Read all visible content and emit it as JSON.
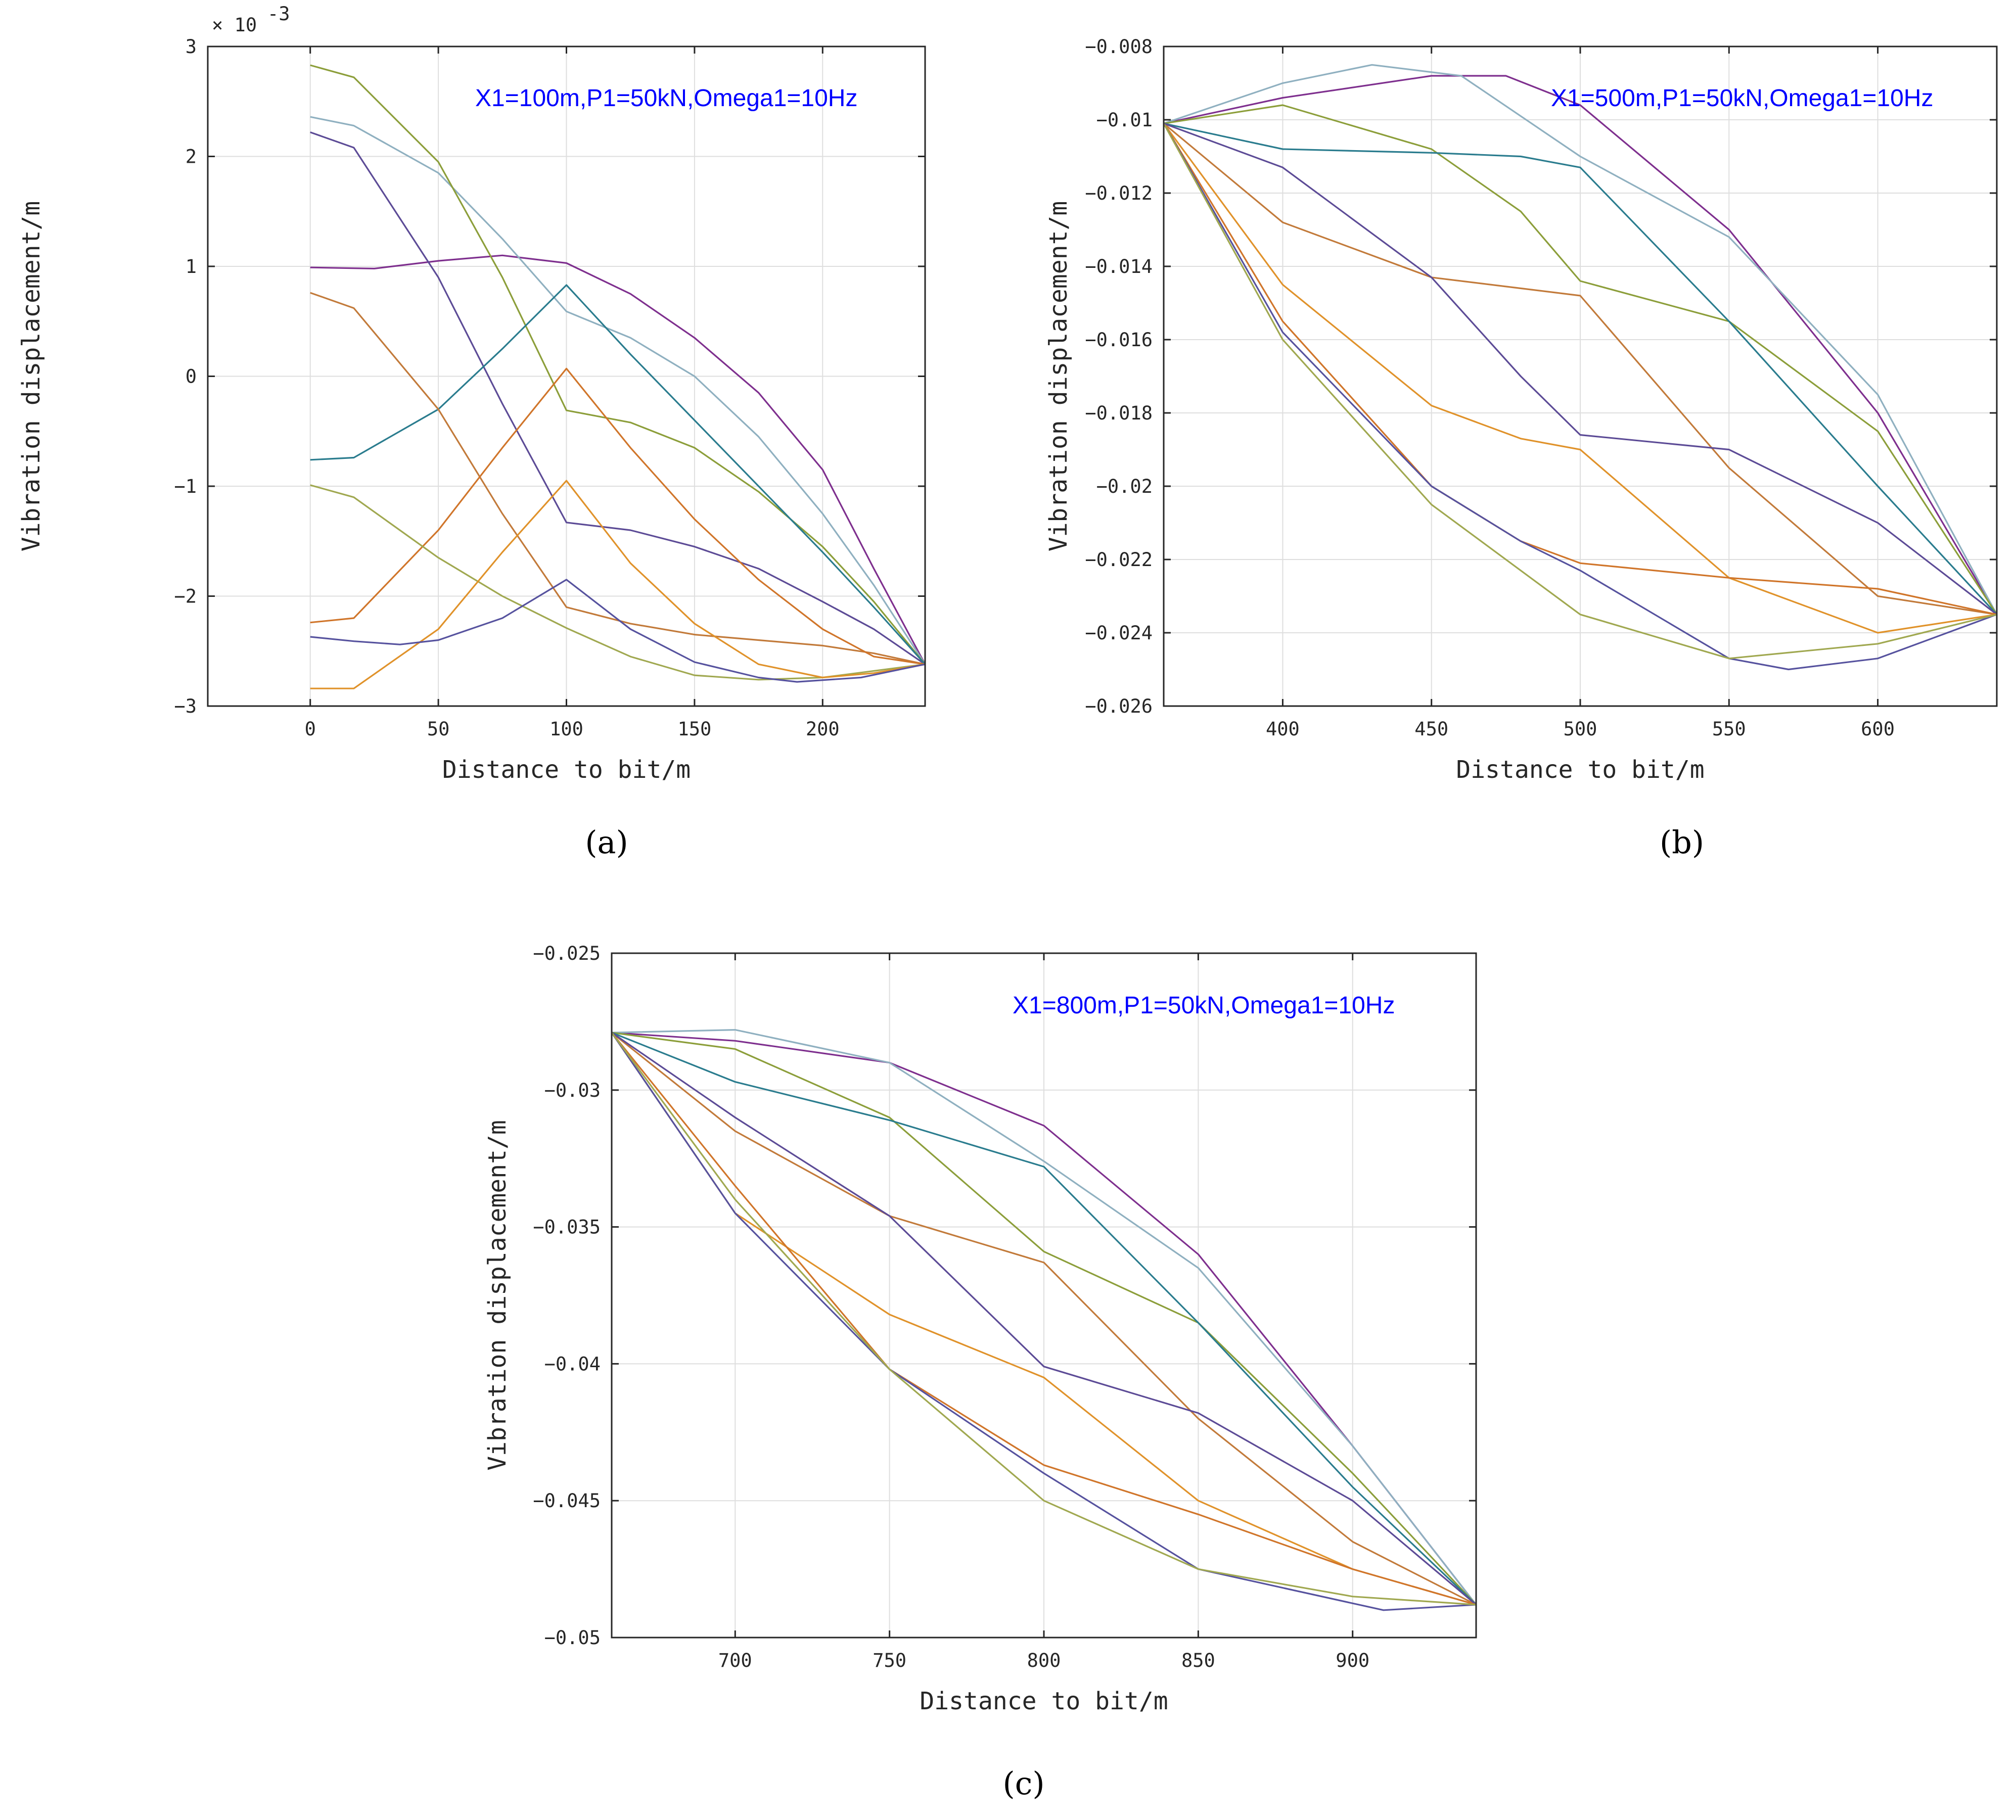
{
  "chart_data": [
    {
      "type": "line",
      "panel_label": "(a)",
      "annotation": "X1=100m,P1=50kN,Omega1=10Hz",
      "xlabel": "Distance to bit/m",
      "ylabel": "Vibration displacement/m",
      "y_multiplier": "× 10",
      "y_multiplier_exp": "-3",
      "xlim": [
        -40,
        240
      ],
      "ylim": [
        -3,
        3
      ],
      "xticks": [
        0,
        50,
        100,
        150,
        200
      ],
      "xtick_labels": [
        "0",
        "50",
        "100",
        "150",
        "200"
      ],
      "yticks": [
        -3,
        -2,
        -1,
        0,
        1,
        2,
        3
      ],
      "ytick_labels": [
        "−3",
        "−2",
        "−1",
        "0",
        "1",
        "2",
        "3"
      ],
      "grid": true,
      "series": [
        {
          "color": "#7e2f8e",
          "x": [
            0,
            25,
            50,
            75,
            100,
            125,
            150,
            175,
            200,
            220,
            240
          ],
          "y": [
            0.99,
            0.98,
            1.05,
            1.1,
            1.03,
            0.75,
            0.35,
            -0.15,
            -0.85,
            -1.75,
            -2.62
          ]
        },
        {
          "color": "#8fb0c0",
          "x": [
            0,
            17,
            50,
            75,
            100,
            125,
            150,
            175,
            200,
            220,
            240
          ],
          "y": [
            2.36,
            2.28,
            1.85,
            1.25,
            0.59,
            0.35,
            0.0,
            -0.55,
            -1.25,
            -1.9,
            -2.62
          ]
        },
        {
          "color": "#8c9e3a",
          "x": [
            0,
            17,
            50,
            75,
            100,
            125,
            150,
            175,
            200,
            220,
            240
          ],
          "y": [
            2.83,
            2.72,
            1.95,
            0.9,
            -0.31,
            -0.42,
            -0.65,
            -1.05,
            -1.55,
            -2.05,
            -2.62
          ]
        },
        {
          "color": "#5c4b96",
          "x": [
            0,
            17,
            50,
            75,
            100,
            125,
            150,
            175,
            200,
            220,
            240
          ],
          "y": [
            2.22,
            2.08,
            0.9,
            -0.25,
            -1.33,
            -1.4,
            -1.55,
            -1.75,
            -2.05,
            -2.3,
            -2.62
          ]
        },
        {
          "color": "#2a7c8e",
          "x": [
            0,
            17,
            50,
            75,
            100,
            125,
            150,
            175,
            200,
            220,
            240
          ],
          "y": [
            -0.76,
            -0.74,
            -0.3,
            0.25,
            0.83,
            0.2,
            -0.4,
            -1.0,
            -1.6,
            -2.1,
            -2.62
          ]
        },
        {
          "color": "#c27a3a",
          "x": [
            0,
            17,
            50,
            75,
            100,
            125,
            150,
            175,
            200,
            220,
            240
          ],
          "y": [
            0.76,
            0.62,
            -0.3,
            -1.25,
            -2.1,
            -2.25,
            -2.35,
            -2.4,
            -2.45,
            -2.52,
            -2.62
          ]
        },
        {
          "color": "#d0752a",
          "x": [
            0,
            17,
            50,
            75,
            100,
            125,
            150,
            175,
            200,
            220,
            240
          ],
          "y": [
            -2.24,
            -2.2,
            -1.4,
            -0.65,
            0.07,
            -0.65,
            -1.3,
            -1.85,
            -2.3,
            -2.55,
            -2.62
          ]
        },
        {
          "color": "#a0a850",
          "x": [
            0,
            17,
            50,
            75,
            100,
            125,
            150,
            175,
            200,
            220,
            240
          ],
          "y": [
            -0.99,
            -1.1,
            -1.65,
            -2.0,
            -2.29,
            -2.55,
            -2.72,
            -2.76,
            -2.74,
            -2.68,
            -2.62
          ]
        },
        {
          "color": "#e0922a",
          "x": [
            0,
            17,
            50,
            75,
            100,
            125,
            150,
            175,
            200,
            220,
            240
          ],
          "y": [
            -2.84,
            -2.84,
            -2.3,
            -1.6,
            -0.95,
            -1.7,
            -2.25,
            -2.62,
            -2.74,
            -2.7,
            -2.62
          ]
        },
        {
          "color": "#56529e",
          "x": [
            0,
            17,
            35,
            50,
            75,
            100,
            125,
            150,
            175,
            190,
            215,
            240
          ],
          "y": [
            -2.37,
            -2.41,
            -2.44,
            -2.4,
            -2.2,
            -1.85,
            -2.3,
            -2.6,
            -2.74,
            -2.78,
            -2.74,
            -2.62
          ]
        }
      ]
    },
    {
      "type": "line",
      "panel_label": "(b)",
      "annotation": "X1=500m,P1=50kN,Omega1=10Hz",
      "xlabel": "Distance to bit/m",
      "ylabel": "Vibration displacement/m",
      "xlim": [
        360,
        640
      ],
      "ylim": [
        -0.026,
        -0.008
      ],
      "xticks": [
        400,
        450,
        500,
        550,
        600
      ],
      "xtick_labels": [
        "400",
        "450",
        "500",
        "550",
        "600"
      ],
      "yticks": [
        -0.026,
        -0.024,
        -0.022,
        -0.02,
        -0.018,
        -0.016,
        -0.014,
        -0.012,
        -0.01,
        -0.008
      ],
      "ytick_labels": [
        "−0.026",
        "−0.024",
        "−0.022",
        "−0.02",
        "−0.018",
        "−0.016",
        "−0.014",
        "−0.012",
        "−0.01",
        "−0.008"
      ],
      "grid": true,
      "series": [
        {
          "color": "#7e2f8e",
          "x": [
            360,
            400,
            450,
            475,
            500,
            550,
            600,
            640
          ],
          "y": [
            -0.0101,
            -0.0094,
            -0.0088,
            -0.0088,
            -0.0096,
            -0.013,
            -0.018,
            -0.0235
          ]
        },
        {
          "color": "#8fb0c0",
          "x": [
            360,
            400,
            430,
            460,
            500,
            550,
            600,
            640
          ],
          "y": [
            -0.0101,
            -0.009,
            -0.0085,
            -0.0088,
            -0.011,
            -0.0132,
            -0.0175,
            -0.0235
          ]
        },
        {
          "color": "#8c9e3a",
          "x": [
            360,
            400,
            450,
            480,
            500,
            550,
            600,
            640
          ],
          "y": [
            -0.0101,
            -0.0096,
            -0.0108,
            -0.0125,
            -0.0144,
            -0.0155,
            -0.0185,
            -0.0235
          ]
        },
        {
          "color": "#2a7c8e",
          "x": [
            360,
            400,
            450,
            480,
            500,
            550,
            600,
            640
          ],
          "y": [
            -0.0101,
            -0.0108,
            -0.0109,
            -0.011,
            -0.0113,
            -0.0155,
            -0.02,
            -0.0235
          ]
        },
        {
          "color": "#c27a3a",
          "x": [
            360,
            400,
            450,
            480,
            500,
            550,
            600,
            640
          ],
          "y": [
            -0.0101,
            -0.0128,
            -0.0143,
            -0.0146,
            -0.0148,
            -0.0195,
            -0.023,
            -0.0235
          ]
        },
        {
          "color": "#5c4b96",
          "x": [
            360,
            400,
            450,
            480,
            500,
            550,
            600,
            640
          ],
          "y": [
            -0.0101,
            -0.0113,
            -0.0143,
            -0.017,
            -0.0186,
            -0.019,
            -0.021,
            -0.0235
          ]
        },
        {
          "color": "#e0922a",
          "x": [
            360,
            400,
            450,
            480,
            500,
            550,
            600,
            640
          ],
          "y": [
            -0.0101,
            -0.0145,
            -0.0178,
            -0.0187,
            -0.019,
            -0.0225,
            -0.024,
            -0.0235
          ]
        },
        {
          "color": "#d0752a",
          "x": [
            360,
            400,
            450,
            480,
            500,
            550,
            600,
            640
          ],
          "y": [
            -0.0101,
            -0.0155,
            -0.02,
            -0.0215,
            -0.0221,
            -0.0225,
            -0.0228,
            -0.0235
          ]
        },
        {
          "color": "#56529e",
          "x": [
            360,
            400,
            450,
            480,
            500,
            550,
            570,
            600,
            640
          ],
          "y": [
            -0.0101,
            -0.0158,
            -0.02,
            -0.0215,
            -0.0223,
            -0.0247,
            -0.025,
            -0.0247,
            -0.0235
          ]
        },
        {
          "color": "#a0a850",
          "x": [
            360,
            400,
            450,
            500,
            550,
            600,
            640
          ],
          "y": [
            -0.0101,
            -0.016,
            -0.0205,
            -0.0235,
            -0.0247,
            -0.0243,
            -0.0235
          ]
        }
      ]
    },
    {
      "type": "line",
      "panel_label": "(c)",
      "annotation": "X1=800m,P1=50kN,Omega1=10Hz",
      "xlabel": "Distance to bit/m",
      "ylabel": "Vibration displacement/m",
      "xlim": [
        660,
        940
      ],
      "ylim": [
        -0.05,
        -0.025
      ],
      "xticks": [
        700,
        750,
        800,
        850,
        900
      ],
      "xtick_labels": [
        "700",
        "750",
        "800",
        "850",
        "900"
      ],
      "yticks": [
        -0.05,
        -0.045,
        -0.04,
        -0.035,
        -0.03,
        -0.025
      ],
      "ytick_labels": [
        "−0.05",
        "−0.045",
        "−0.04",
        "−0.035",
        "−0.03",
        "−0.025"
      ],
      "grid": true,
      "series": [
        {
          "color": "#7e2f8e",
          "x": [
            660,
            700,
            750,
            800,
            850,
            900,
            940
          ],
          "y": [
            -0.0279,
            -0.0282,
            -0.029,
            -0.0313,
            -0.036,
            -0.043,
            -0.0488
          ]
        },
        {
          "color": "#8fb0c0",
          "x": [
            660,
            700,
            750,
            800,
            850,
            900,
            940
          ],
          "y": [
            -0.0279,
            -0.0278,
            -0.029,
            -0.0326,
            -0.0365,
            -0.043,
            -0.0488
          ]
        },
        {
          "color": "#8c9e3a",
          "x": [
            660,
            700,
            750,
            800,
            850,
            900,
            940
          ],
          "y": [
            -0.0279,
            -0.0285,
            -0.031,
            -0.0359,
            -0.0385,
            -0.044,
            -0.0488
          ]
        },
        {
          "color": "#2a7c8e",
          "x": [
            660,
            700,
            750,
            800,
            850,
            900,
            940
          ],
          "y": [
            -0.0279,
            -0.0297,
            -0.0311,
            -0.0328,
            -0.0385,
            -0.0445,
            -0.0488
          ]
        },
        {
          "color": "#c27a3a",
          "x": [
            660,
            700,
            750,
            800,
            850,
            900,
            940
          ],
          "y": [
            -0.0279,
            -0.0315,
            -0.0346,
            -0.0363,
            -0.042,
            -0.0465,
            -0.0488
          ]
        },
        {
          "color": "#5c4b96",
          "x": [
            660,
            700,
            750,
            800,
            850,
            900,
            940
          ],
          "y": [
            -0.0279,
            -0.031,
            -0.0346,
            -0.0401,
            -0.0418,
            -0.045,
            -0.0488
          ]
        },
        {
          "color": "#e0922a",
          "x": [
            660,
            700,
            750,
            800,
            850,
            900,
            940
          ],
          "y": [
            -0.0279,
            -0.0345,
            -0.0382,
            -0.0405,
            -0.045,
            -0.0475,
            -0.0488
          ]
        },
        {
          "color": "#d0752a",
          "x": [
            660,
            700,
            750,
            800,
            850,
            900,
            940
          ],
          "y": [
            -0.0279,
            -0.0335,
            -0.0402,
            -0.0437,
            -0.0455,
            -0.0475,
            -0.0488
          ]
        },
        {
          "color": "#56529e",
          "x": [
            660,
            700,
            750,
            800,
            850,
            910,
            940
          ],
          "y": [
            -0.0279,
            -0.0345,
            -0.0402,
            -0.044,
            -0.0475,
            -0.049,
            -0.0488
          ]
        },
        {
          "color": "#a0a850",
          "x": [
            660,
            700,
            750,
            800,
            850,
            900,
            940
          ],
          "y": [
            -0.0279,
            -0.034,
            -0.0402,
            -0.045,
            -0.0475,
            -0.0485,
            -0.0488
          ]
        }
      ]
    }
  ]
}
